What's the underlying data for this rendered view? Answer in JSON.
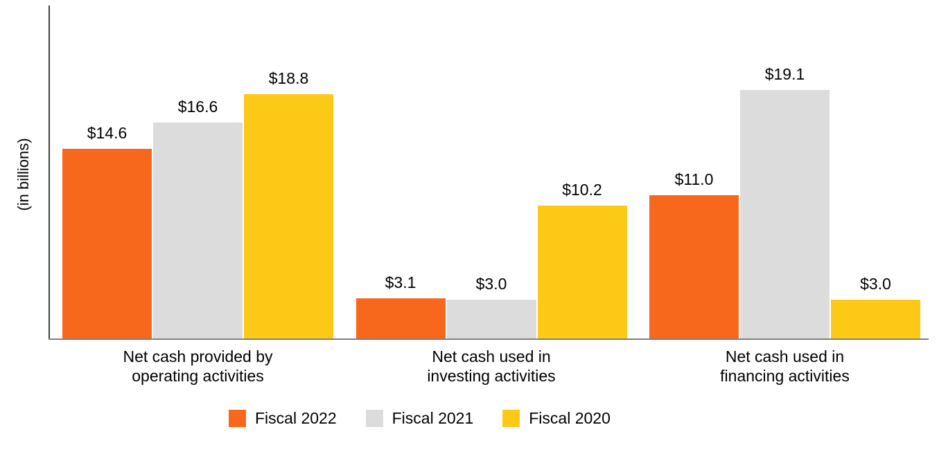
{
  "chart_data": {
    "type": "bar",
    "title": "",
    "xlabel": "",
    "ylabel": "(in billions)",
    "categories": [
      "Net cash provided by operating activities",
      "Net cash used in investing activities",
      "Net cash used in financing activities"
    ],
    "categories_lines": [
      [
        "Net cash provided by",
        "operating activities"
      ],
      [
        "Net cash used in",
        "investing activities"
      ],
      [
        "Net cash used in",
        "financing activities"
      ]
    ],
    "series": [
      {
        "name": "Fiscal 2022",
        "color": "#F8681C",
        "values": [
          14.6,
          3.1,
          11.0
        ],
        "labels": [
          "$14.6",
          "$3.1",
          "$11.0"
        ]
      },
      {
        "name": "Fiscal 2021",
        "color": "#DCDCDC",
        "values": [
          16.6,
          3.0,
          19.1
        ],
        "labels": [
          "$16.6",
          "$3.0",
          "$19.1"
        ]
      },
      {
        "name": "Fiscal 2020",
        "color": "#FCC917",
        "values": [
          18.8,
          10.2,
          3.0
        ],
        "labels": [
          "$18.8",
          "$10.2",
          "$3.0"
        ]
      }
    ],
    "legend_position": "bottom",
    "grid": false
  }
}
